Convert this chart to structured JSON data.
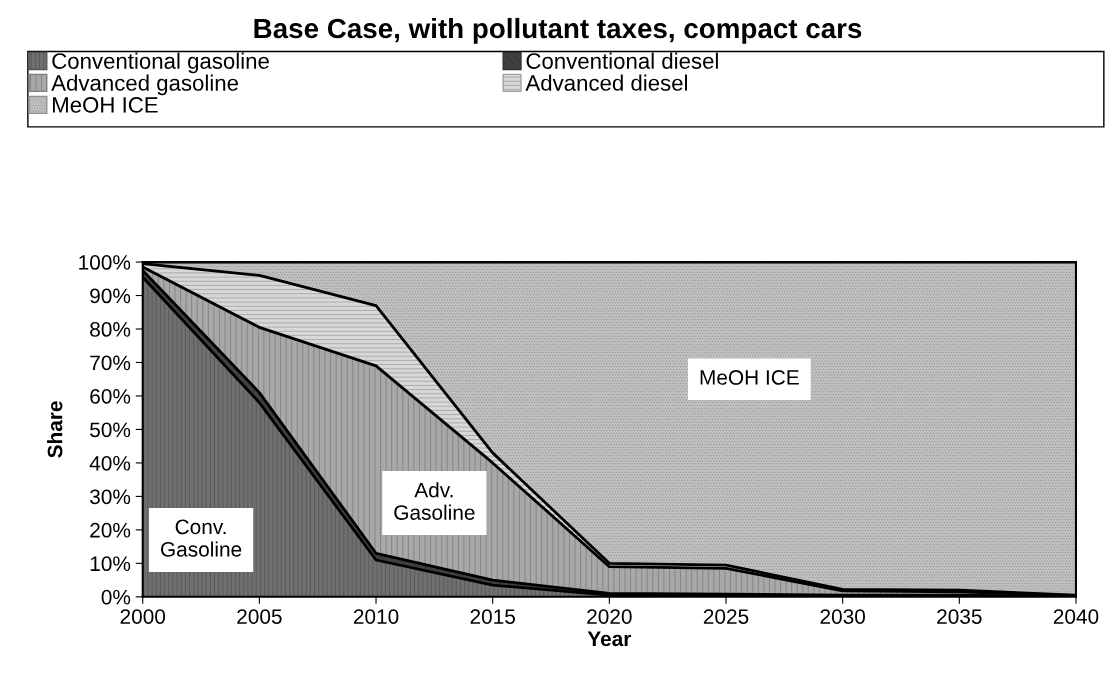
{
  "chart_data": {
    "type": "area",
    "stacked": true,
    "title": "Base Case, with pollutant taxes, compact cars",
    "xlabel": "Year",
    "ylabel": "Share",
    "x": [
      2000,
      2005,
      2010,
      2015,
      2020,
      2025,
      2030,
      2035,
      2040
    ],
    "series": [
      {
        "name": "Conventional gasoline",
        "color": "#707070",
        "values": [
          95.5,
          58,
          11,
          3.5,
          0.5,
          0.3,
          0.2,
          0.2,
          0
        ]
      },
      {
        "name": "Conventional diesel",
        "color": "#404040",
        "values": [
          2,
          3,
          2,
          1.5,
          0.5,
          0.5,
          0.3,
          0.3,
          0
        ]
      },
      {
        "name": "Advanced gasoline",
        "color": "#a8a8a8",
        "values": [
          1,
          19.5,
          56,
          35,
          8,
          7.7,
          1.3,
          1.0,
          0.3
        ]
      },
      {
        "name": "Advanced diesel",
        "color": "#d8d8d8",
        "values": [
          1,
          15.5,
          18,
          3,
          1,
          1,
          0.4,
          0.5,
          0.2
        ]
      },
      {
        "name": "MeOH ICE",
        "color": "#c0c0c0",
        "values": [
          0.5,
          4,
          13,
          57,
          90,
          90.5,
          97.8,
          98,
          99.5
        ]
      }
    ],
    "xlim": [
      2000,
      2040
    ],
    "xticks": [
      2000,
      2005,
      2010,
      2015,
      2020,
      2025,
      2030,
      2035,
      2040
    ],
    "ylim": [
      0,
      100
    ],
    "yticks": [
      {
        "value": 0,
        "label": "0%"
      },
      {
        "value": 10,
        "label": "10%"
      },
      {
        "value": 20,
        "label": "20%"
      },
      {
        "value": 30,
        "label": "30%"
      },
      {
        "value": 40,
        "label": "40%"
      },
      {
        "value": 50,
        "label": "50%"
      },
      {
        "value": 60,
        "label": "60%"
      },
      {
        "value": 70,
        "label": "70%"
      },
      {
        "value": 80,
        "label": "80%"
      },
      {
        "value": 90,
        "label": "90%"
      },
      {
        "value": 100,
        "label": "100%"
      }
    ],
    "legend": "top",
    "annotations": [
      "Conv.\nGasoline",
      "Adv.\nGasoline",
      "MeOH ICE"
    ]
  }
}
